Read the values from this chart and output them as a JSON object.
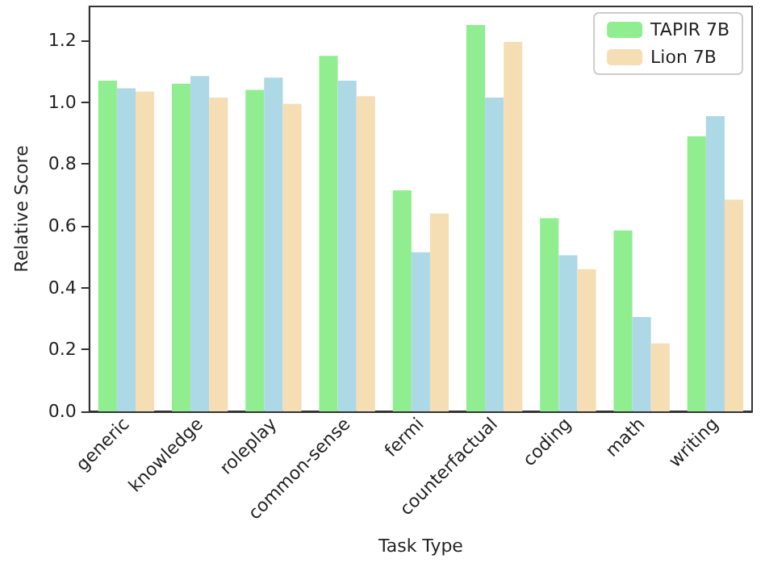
{
  "chart_data": {
    "type": "bar",
    "xlabel": "Task Type",
    "ylabel": "Relative Score",
    "categories": [
      "generic",
      "knowledge",
      "roleplay",
      "common-sense",
      "fermi",
      "counterfactual",
      "coding",
      "math",
      "writing"
    ],
    "series": [
      {
        "name": "TAPIR 7B",
        "color": "#90ee90",
        "values": [
          1.07,
          1.06,
          1.04,
          1.15,
          0.715,
          1.25,
          0.625,
          0.585,
          0.89
        ]
      },
      {
        "color": "#add8e6",
        "values": [
          1.045,
          1.085,
          1.08,
          1.07,
          0.515,
          1.015,
          0.505,
          0.305,
          0.955
        ]
      },
      {
        "name": "Lion 7B",
        "color": "#f5deb3",
        "values": [
          1.035,
          1.015,
          0.995,
          1.02,
          0.64,
          1.195,
          0.46,
          0.22,
          0.685
        ]
      }
    ],
    "ylim": [
      0,
      1.31
    ],
    "yticks": [
      {
        "value": 0,
        "label": "0.0"
      },
      0.2,
      0.4,
      0.6,
      0.8,
      {
        "value": 1,
        "label": "1.0"
      },
      1.2
    ],
    "grid": false,
    "legend": "top right"
  }
}
